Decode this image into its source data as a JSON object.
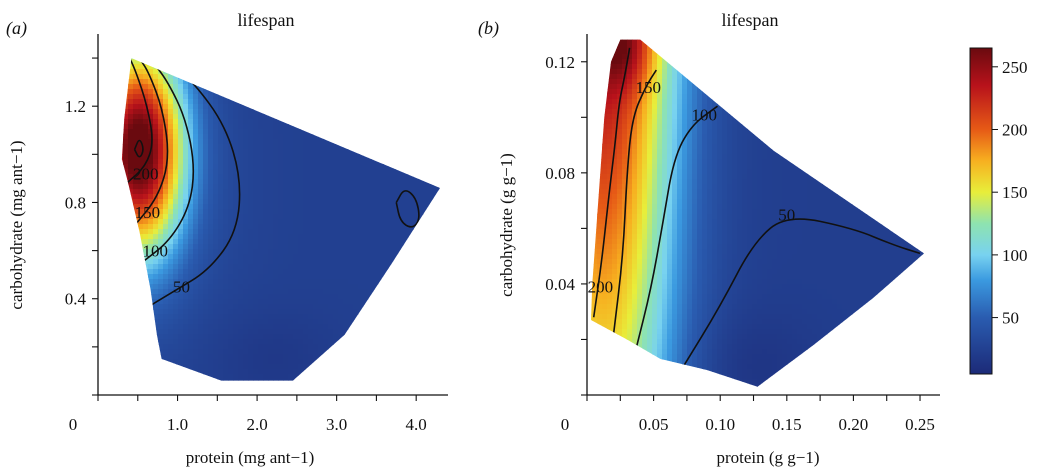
{
  "chart_data": [
    {
      "type": "heatmap",
      "panel_label": "(a)",
      "title": "lifespan",
      "xlabel": "protein (mg ant−1)",
      "ylabel": "carbohydrate (mg ant−1)",
      "origin_label": "0",
      "xlim": [
        0,
        4.4
      ],
      "ylim": [
        0,
        1.5
      ],
      "x_ticks": [
        1.0,
        2.0,
        3.0,
        4.0
      ],
      "x_tick_labels": [
        "1.0",
        "2.0",
        "3.0",
        "4.0"
      ],
      "y_ticks": [
        0.4,
        0.8,
        1.2
      ],
      "y_tick_labels": [
        "0.4",
        "0.8",
        "1.2"
      ],
      "domain_polygon": [
        [
          0.42,
          1.4
        ],
        [
          0.33,
          1.15
        ],
        [
          0.3,
          0.98
        ],
        [
          0.38,
          0.88
        ],
        [
          0.52,
          0.68
        ],
        [
          0.66,
          0.44
        ],
        [
          0.74,
          0.25
        ],
        [
          0.8,
          0.15
        ],
        [
          1.55,
          0.06
        ],
        [
          2.45,
          0.06
        ],
        [
          3.1,
          0.25
        ],
        [
          3.7,
          0.55
        ],
        [
          4.3,
          0.86
        ]
      ],
      "peak": {
        "x": 0.52,
        "y": 1.02,
        "value": 262
      },
      "contours": [
        {
          "level": 50,
          "label": "50",
          "label_at": [
            1.05,
            0.45
          ],
          "points": [
            [
              0.55,
              0.35
            ],
            [
              0.95,
              0.43
            ],
            [
              1.4,
              0.52
            ],
            [
              1.75,
              0.68
            ],
            [
              1.8,
              0.9
            ],
            [
              1.6,
              1.12
            ],
            [
              1.2,
              1.3
            ],
            [
              0.9,
              1.38
            ]
          ]
        },
        {
          "level": 100,
          "label": "100",
          "label_at": [
            0.72,
            0.6
          ],
          "points": [
            [
              0.55,
              0.55
            ],
            [
              0.9,
              0.64
            ],
            [
              1.15,
              0.78
            ],
            [
              1.22,
              0.95
            ],
            [
              1.1,
              1.15
            ],
            [
              0.88,
              1.3
            ],
            [
              0.7,
              1.38
            ]
          ]
        },
        {
          "level": 150,
          "label": "150",
          "label_at": [
            0.62,
            0.76
          ],
          "points": [
            [
              0.45,
              0.7
            ],
            [
              0.75,
              0.82
            ],
            [
              0.9,
              0.98
            ],
            [
              0.82,
              1.18
            ],
            [
              0.64,
              1.34
            ],
            [
              0.52,
              1.4
            ]
          ]
        },
        {
          "level": 200,
          "label": "200",
          "label_at": [
            0.6,
            0.92
          ],
          "points": [
            [
              0.36,
              0.88
            ],
            [
              0.6,
              0.95
            ],
            [
              0.7,
              1.05
            ],
            [
              0.62,
              1.2
            ],
            [
              0.48,
              1.34
            ],
            [
              0.4,
              1.4
            ]
          ]
        },
        {
          "level": 250,
          "label": "",
          "label_at": null,
          "points": [
            [
              0.46,
              1.02
            ],
            [
              0.52,
              1.07
            ],
            [
              0.58,
              1.02
            ],
            [
              0.52,
              0.98
            ],
            [
              0.46,
              1.02
            ]
          ]
        },
        {
          "level": 50,
          "label": "",
          "label_at": null,
          "points": [
            [
              3.75,
              0.8
            ],
            [
              3.85,
              0.86
            ],
            [
              4.0,
              0.82
            ],
            [
              4.05,
              0.73
            ],
            [
              3.95,
              0.69
            ],
            [
              3.8,
              0.72
            ],
            [
              3.75,
              0.8
            ]
          ]
        }
      ]
    },
    {
      "type": "heatmap",
      "panel_label": "(b)",
      "title": "lifespan",
      "xlabel": "protein (g g−1)",
      "ylabel": "carbohydrate (g g−1)",
      "origin_label": "0",
      "xlim": [
        0,
        0.265
      ],
      "ylim": [
        0,
        0.13
      ],
      "x_ticks": [
        0.05,
        0.1,
        0.15,
        0.2,
        0.25
      ],
      "x_tick_labels": [
        "0.05",
        "0.10",
        "0.15",
        "0.20",
        "0.25"
      ],
      "y_ticks": [
        0.04,
        0.08,
        0.12
      ],
      "y_tick_labels": [
        "0.04",
        "0.08",
        "0.12"
      ],
      "domain_polygon": [
        [
          0.025,
          0.128
        ],
        [
          0.018,
          0.12
        ],
        [
          0.013,
          0.1
        ],
        [
          0.01,
          0.08
        ],
        [
          0.007,
          0.06
        ],
        [
          0.004,
          0.04
        ],
        [
          0.003,
          0.027
        ],
        [
          0.03,
          0.02
        ],
        [
          0.055,
          0.013
        ],
        [
          0.09,
          0.009
        ],
        [
          0.128,
          0.003
        ],
        [
          0.17,
          0.018
        ],
        [
          0.215,
          0.035
        ],
        [
          0.253,
          0.051
        ],
        [
          0.14,
          0.088
        ],
        [
          0.085,
          0.11
        ],
        [
          0.04,
          0.128
        ]
      ],
      "peak": {
        "x": 0.027,
        "y": 0.126,
        "value": 262
      },
      "contours": [
        {
          "level": 200,
          "label": "200",
          "label_at": [
            0.01,
            0.039
          ],
          "points": [
            [
              0.005,
              0.028
            ],
            [
              0.011,
              0.048
            ],
            [
              0.016,
              0.07
            ],
            [
              0.021,
              0.09
            ],
            [
              0.024,
              0.105
            ],
            [
              0.028,
              0.114
            ],
            [
              0.032,
              0.125
            ]
          ]
        },
        {
          "level": 150,
          "label": "150",
          "label_at": [
            0.046,
            0.111
          ],
          "points": [
            [
              0.02,
              0.022
            ],
            [
              0.027,
              0.05
            ],
            [
              0.03,
              0.08
            ],
            [
              0.034,
              0.1
            ],
            [
              0.044,
              0.111
            ],
            [
              0.052,
              0.117
            ]
          ]
        },
        {
          "level": 100,
          "label": "100",
          "label_at": [
            0.088,
            0.101
          ],
          "points": [
            [
              0.037,
              0.017
            ],
            [
              0.048,
              0.038
            ],
            [
              0.057,
              0.062
            ],
            [
              0.065,
              0.085
            ],
            [
              0.078,
              0.097
            ],
            [
              0.098,
              0.104
            ]
          ]
        },
        {
          "level": 50,
          "label": "50",
          "label_at": [
            0.15,
            0.065
          ],
          "points": [
            [
              0.072,
              0.01
            ],
            [
              0.1,
              0.032
            ],
            [
              0.125,
              0.055
            ],
            [
              0.15,
              0.065
            ],
            [
              0.2,
              0.06
            ],
            [
              0.23,
              0.054
            ],
            [
              0.25,
              0.051
            ]
          ]
        }
      ]
    }
  ],
  "colorbar": {
    "min": 5,
    "max": 265,
    "ticks": [
      50,
      100,
      150,
      200,
      250
    ],
    "tick_labels": [
      "50",
      "100",
      "150",
      "200",
      "250"
    ],
    "colors": [
      "#1c2a78",
      "#2a5cb0",
      "#3b9ae0",
      "#78d2f0",
      "#8ee3b0",
      "#e8ee3a",
      "#f7b020",
      "#e65a16",
      "#b8121b",
      "#6a0a0f"
    ],
    "color_stops": [
      0,
      50,
      80,
      100,
      125,
      150,
      175,
      200,
      235,
      265
    ]
  }
}
